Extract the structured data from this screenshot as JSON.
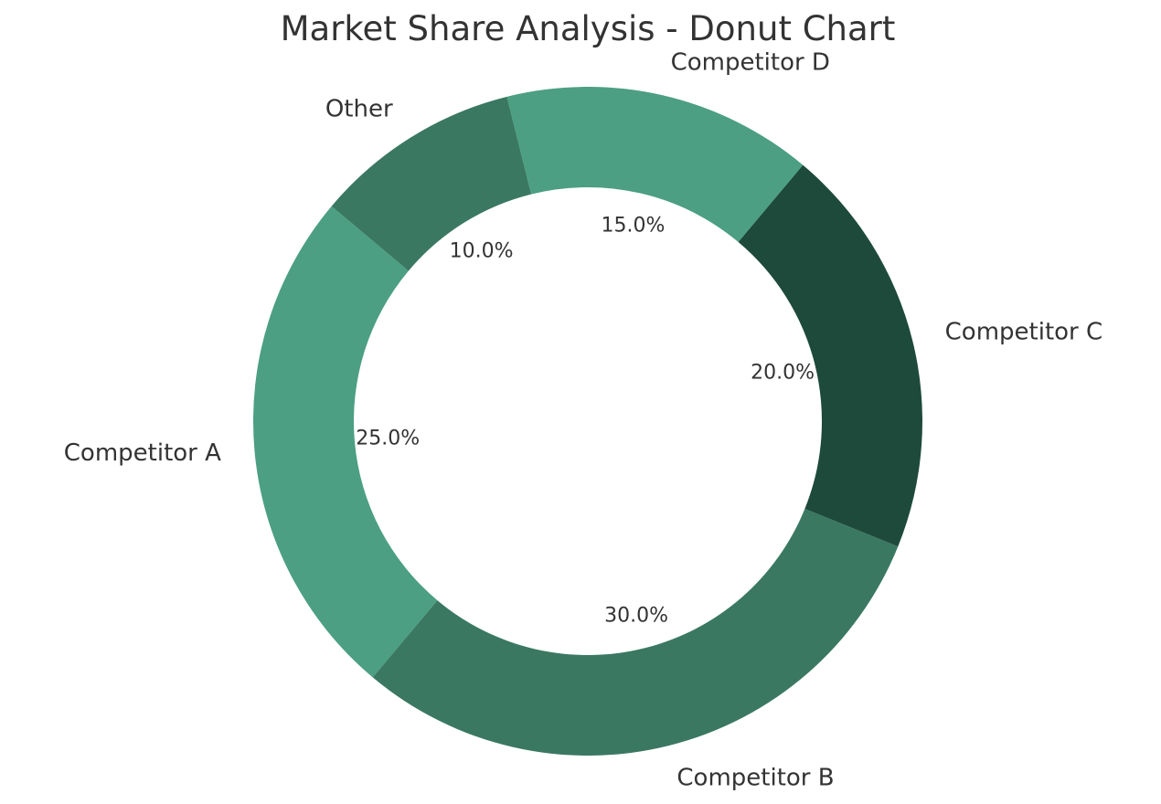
{
  "chart_data": {
    "type": "pie",
    "variant": "donut",
    "title": "Market Share Analysis - Donut Chart",
    "categories": [
      "Competitor A",
      "Competitor B",
      "Competitor C",
      "Competitor D",
      "Other"
    ],
    "values": [
      25,
      30,
      20,
      15,
      10
    ],
    "percent_labels": [
      "25.0%",
      "30.0%",
      "20.0%",
      "15.0%",
      "10.0%"
    ],
    "colors": [
      "#4c9f82",
      "#3a7862",
      "#1e4a3b",
      "#4c9f82",
      "#3a7862"
    ],
    "start_angle_deg": 140,
    "direction": "counterclockwise",
    "legend": "none",
    "grid": false
  }
}
